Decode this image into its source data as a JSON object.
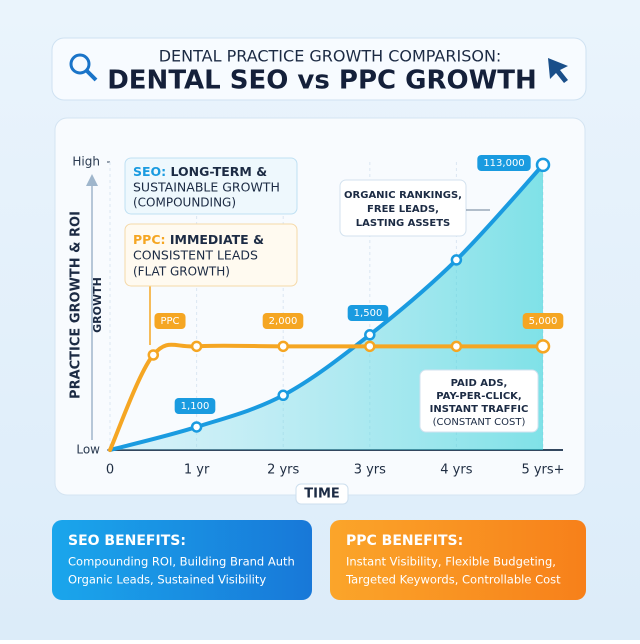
{
  "header": {
    "subtitle": "DENTAL PRACTICE GROWTH COMPARISON:",
    "title": "DENTAL SEO vs PPC GROWTH"
  },
  "chart_data": {
    "type": "line",
    "y_label_lines": [
      "PRACTICE GROWTH & ROI",
      "GROWTH"
    ],
    "x_label": "TIME",
    "xlim": [
      0,
      5
    ],
    "xticks": [
      0,
      {
        "value": 1,
        "label": "1 yr"
      },
      {
        "value": 2,
        "label": "2 yrs"
      },
      {
        "value": 3,
        "label": "3 yrs"
      },
      {
        "value": 4,
        "label": "4 yrs"
      },
      {
        "value": 5,
        "label": "5 yrs+"
      }
    ],
    "ylim": [
      0,
      100
    ],
    "yticks": [
      {
        "value": 0,
        "label": "Low"
      },
      {
        "value": 100,
        "label": "High"
      }
    ],
    "series": [
      {
        "name": "SEO",
        "color": "#1a9be0",
        "x": [
          0,
          1,
          2,
          3,
          4,
          5
        ],
        "values": [
          0,
          8,
          19,
          40,
          66,
          99
        ]
      },
      {
        "name": "PPC",
        "color": "#f5a623",
        "x": [
          0,
          0.5,
          1,
          2,
          3,
          4,
          5
        ],
        "values": [
          0,
          33,
          36,
          36,
          36,
          36,
          36
        ]
      }
    ],
    "annotations": [
      "1,100",
      "1,500",
      "113,000",
      "2,000",
      "5,000"
    ],
    "callouts": [
      {
        "heading": "SEO:",
        "lines": [
          " LONG-TERM &",
          "SUSTAINABLE GROWTH",
          "(COMPOUNDING)"
        ]
      },
      {
        "heading": "PPC:",
        "lines": [
          " IMMEDIATE &",
          "CONSISTENT LEADS",
          "(FLAT GROWTH)"
        ]
      },
      {
        "lines": [
          "ORGANIC RANKINGS,",
          "FREE LEADS,",
          "LASTING ASSETS"
        ]
      },
      {
        "lines": [
          "PAID ADS,",
          "PAY-PER-CLICK,",
          "INSTANT TRAFFIC",
          "(CONSTANT COST)"
        ]
      }
    ]
  },
  "benefits": [
    {
      "title": "SEO BENEFITS:",
      "lines": [
        "Compounding ROI, Building Brand Auth",
        "Organic Leads, Sustained Visibility"
      ]
    },
    {
      "title": "PPC BENEFITS:",
      "lines": [
        "Instant Visibility, Flexible Budgeting,",
        "Targeted Keywords, Controllable Cost"
      ]
    }
  ]
}
